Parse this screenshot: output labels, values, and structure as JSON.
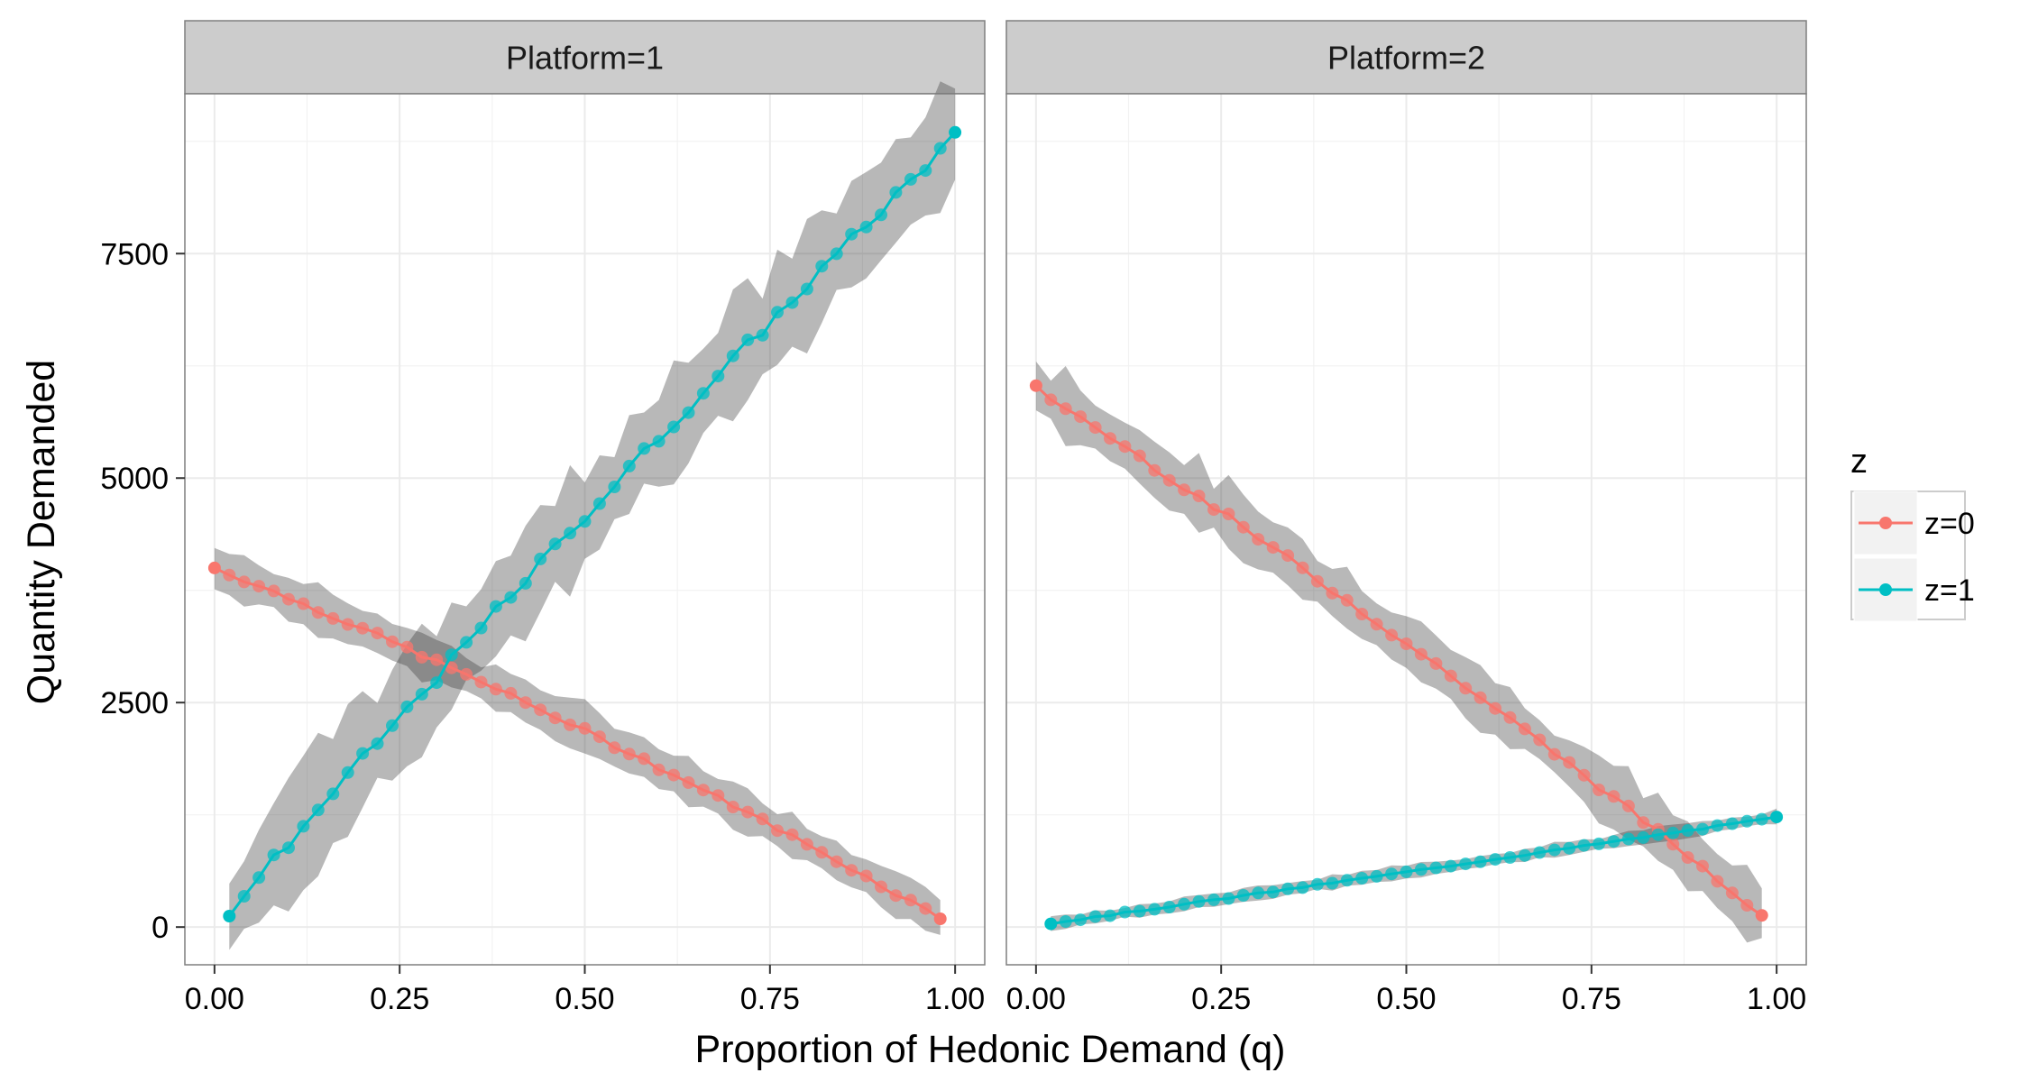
{
  "chart_data": {
    "type": "line",
    "xlabel": "Proportion of Hedonic Demand (q)",
    "ylabel": "Quantity Demanded",
    "xlim": [
      -0.04,
      1.04
    ],
    "ylim": [
      -420,
      9280
    ],
    "x_ticks": [
      "0.00",
      "0.25",
      "0.50",
      "0.75",
      "1.00"
    ],
    "y_ticks": [
      "0",
      "2500",
      "5000",
      "7500"
    ],
    "grid": true,
    "shaded_band": "confidence interval",
    "legend": {
      "title": "z",
      "placement": "right",
      "entries": [
        {
          "label": "z=0",
          "color": "#f8766d"
        },
        {
          "label": "z=1",
          "color": "#00bfc4"
        }
      ]
    },
    "panels": [
      {
        "strip": "Platform=1",
        "series": [
          {
            "name": "z=0",
            "color": "#f8766d",
            "x_start": 0.0,
            "x_end": 0.98,
            "n": 50,
            "y_start": 4000,
            "y_end": 100,
            "curve": 0.18,
            "band": 230,
            "band_wobble": 60
          },
          {
            "name": "z=1",
            "color": "#00bfc4",
            "x_start": 0.02,
            "x_end": 1.0,
            "n": 50,
            "y_start": 180,
            "y_end": 8800,
            "curve": -0.08,
            "band": 550,
            "band_wobble": 200
          }
        ]
      },
      {
        "strip": "Platform=2",
        "series": [
          {
            "name": "z=0",
            "color": "#f8766d",
            "x_start": 0.0,
            "x_end": 0.98,
            "n": 50,
            "y_start": 6000,
            "y_end": 150,
            "curve": 0.1,
            "band": 310,
            "band_wobble": 110
          },
          {
            "name": "z=1",
            "color": "#00bfc4",
            "x_start": 0.02,
            "x_end": 1.0,
            "n": 50,
            "y_start": 40,
            "y_end": 1220,
            "curve": 0.02,
            "band": 70,
            "band_wobble": 20
          }
        ]
      }
    ]
  }
}
